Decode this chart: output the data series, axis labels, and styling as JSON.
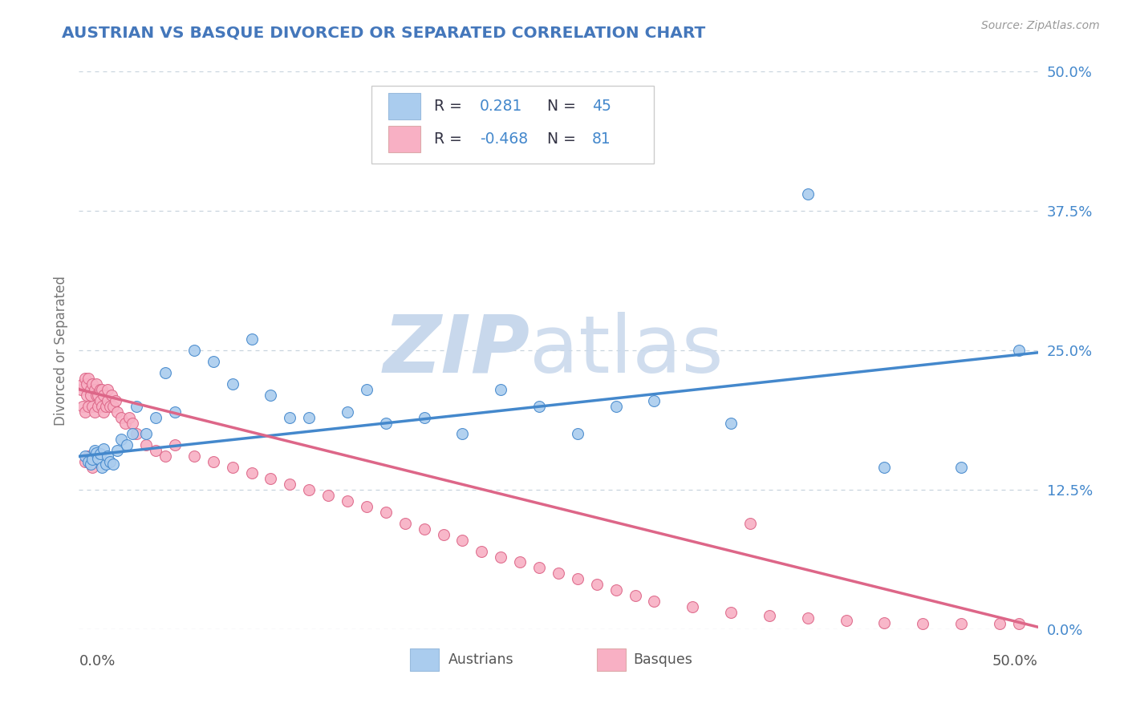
{
  "title": "AUSTRIAN VS BASQUE DIVORCED OR SEPARATED CORRELATION CHART",
  "source": "Source: ZipAtlas.com",
  "ylabel": "Divorced or Separated",
  "r_austrians": 0.281,
  "n_austrians": 45,
  "r_basques": -0.468,
  "n_basques": 81,
  "xlim": [
    0.0,
    0.5
  ],
  "ylim": [
    0.0,
    0.5
  ],
  "yticks_right": [
    0.0,
    0.125,
    0.25,
    0.375,
    0.5
  ],
  "ytick_right_labels": [
    "0.0%",
    "12.5%",
    "25.0%",
    "37.5%",
    "50.0%"
  ],
  "color_austrians": "#aaccee",
  "color_basques": "#f8b0c4",
  "line_color_austrians": "#4488cc",
  "line_color_basques": "#dd6688",
  "watermark_zip_color": "#c8d8ec",
  "watermark_atlas_color": "#c8d8ec",
  "background_color": "#ffffff",
  "grid_color": "#c8d4de",
  "title_color": "#4477bb",
  "axis_label_color": "#777777",
  "tick_color_right": "#4488cc",
  "legend_r_color": "#4488cc",
  "legend_n_color": "#4488cc",
  "legend_label_dark": "#333344",
  "blue_line_y0": 0.155,
  "blue_line_y1": 0.248,
  "pink_line_y0": 0.215,
  "pink_line_y1": 0.002,
  "austrians_x": [
    0.003,
    0.005,
    0.006,
    0.007,
    0.008,
    0.009,
    0.01,
    0.011,
    0.012,
    0.013,
    0.014,
    0.015,
    0.016,
    0.018,
    0.02,
    0.022,
    0.025,
    0.028,
    0.03,
    0.035,
    0.04,
    0.045,
    0.05,
    0.06,
    0.07,
    0.08,
    0.09,
    0.1,
    0.11,
    0.12,
    0.14,
    0.15,
    0.16,
    0.18,
    0.2,
    0.22,
    0.24,
    0.26,
    0.28,
    0.3,
    0.34,
    0.38,
    0.42,
    0.46,
    0.49
  ],
  "austrians_y": [
    0.155,
    0.15,
    0.148,
    0.152,
    0.16,
    0.158,
    0.153,
    0.157,
    0.145,
    0.162,
    0.148,
    0.155,
    0.15,
    0.148,
    0.16,
    0.17,
    0.165,
    0.175,
    0.2,
    0.175,
    0.19,
    0.23,
    0.195,
    0.25,
    0.24,
    0.22,
    0.26,
    0.21,
    0.19,
    0.19,
    0.195,
    0.215,
    0.185,
    0.19,
    0.175,
    0.215,
    0.2,
    0.175,
    0.2,
    0.205,
    0.185,
    0.39,
    0.145,
    0.145,
    0.25
  ],
  "basques_x": [
    0.001,
    0.002,
    0.002,
    0.003,
    0.003,
    0.004,
    0.004,
    0.005,
    0.005,
    0.006,
    0.006,
    0.007,
    0.007,
    0.008,
    0.008,
    0.009,
    0.009,
    0.01,
    0.01,
    0.011,
    0.011,
    0.012,
    0.012,
    0.013,
    0.013,
    0.014,
    0.015,
    0.015,
    0.016,
    0.017,
    0.018,
    0.019,
    0.02,
    0.022,
    0.024,
    0.026,
    0.028,
    0.03,
    0.035,
    0.04,
    0.045,
    0.05,
    0.06,
    0.07,
    0.08,
    0.09,
    0.1,
    0.11,
    0.12,
    0.13,
    0.14,
    0.15,
    0.16,
    0.17,
    0.18,
    0.19,
    0.2,
    0.21,
    0.22,
    0.23,
    0.24,
    0.25,
    0.26,
    0.27,
    0.28,
    0.29,
    0.3,
    0.32,
    0.34,
    0.36,
    0.38,
    0.4,
    0.42,
    0.44,
    0.46,
    0.48,
    0.003,
    0.005,
    0.007,
    0.49,
    0.35
  ],
  "basques_y": [
    0.215,
    0.22,
    0.2,
    0.225,
    0.195,
    0.21,
    0.22,
    0.225,
    0.2,
    0.215,
    0.21,
    0.22,
    0.2,
    0.215,
    0.195,
    0.21,
    0.22,
    0.21,
    0.2,
    0.215,
    0.205,
    0.2,
    0.215,
    0.21,
    0.195,
    0.2,
    0.215,
    0.205,
    0.2,
    0.21,
    0.2,
    0.205,
    0.195,
    0.19,
    0.185,
    0.19,
    0.185,
    0.175,
    0.165,
    0.16,
    0.155,
    0.165,
    0.155,
    0.15,
    0.145,
    0.14,
    0.135,
    0.13,
    0.125,
    0.12,
    0.115,
    0.11,
    0.105,
    0.095,
    0.09,
    0.085,
    0.08,
    0.07,
    0.065,
    0.06,
    0.055,
    0.05,
    0.045,
    0.04,
    0.035,
    0.03,
    0.025,
    0.02,
    0.015,
    0.012,
    0.01,
    0.008,
    0.006,
    0.005,
    0.005,
    0.005,
    0.15,
    0.155,
    0.145,
    0.005,
    0.095
  ]
}
